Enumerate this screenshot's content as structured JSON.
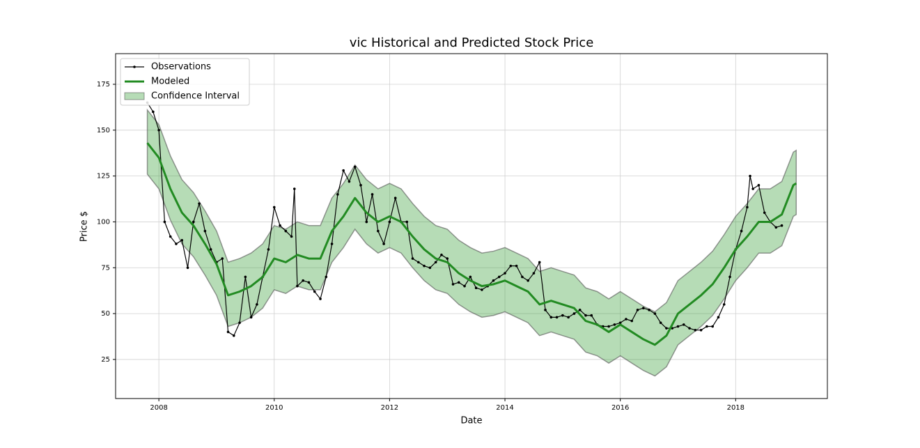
{
  "chart_data": {
    "type": "line",
    "title": "vic Historical and Predicted Stock Price",
    "x_label": "Date",
    "y_label": "Price $",
    "xlim": [
      2007.25,
      2019.59
    ],
    "xticks": [
      2008,
      2010,
      2012,
      2014,
      2016,
      2018
    ],
    "ylim": [
      3.7,
      191.7
    ],
    "yticks": [
      25,
      50,
      75,
      100,
      125,
      150,
      175
    ],
    "grid": true,
    "legend": "upper left",
    "series": [
      {
        "name": "Observations",
        "color": "#000000",
        "x": [
          2007.8,
          2007.9,
          2008.0,
          2008.1,
          2008.2,
          2008.3,
          2008.4,
          2008.5,
          2008.6,
          2008.7,
          2008.8,
          2008.9,
          2009.0,
          2009.1,
          2009.2,
          2009.3,
          2009.4,
          2009.5,
          2009.6,
          2009.7,
          2009.8,
          2009.9,
          2010.0,
          2010.1,
          2010.2,
          2010.3,
          2010.35,
          2010.4,
          2010.5,
          2010.6,
          2010.7,
          2010.8,
          2010.9,
          2011.0,
          2011.1,
          2011.2,
          2011.3,
          2011.4,
          2011.5,
          2011.6,
          2011.7,
          2011.8,
          2011.9,
          2012.0,
          2012.1,
          2012.2,
          2012.3,
          2012.4,
          2012.5,
          2012.6,
          2012.7,
          2012.8,
          2012.9,
          2013.0,
          2013.1,
          2013.2,
          2013.3,
          2013.4,
          2013.5,
          2013.6,
          2013.7,
          2013.8,
          2013.9,
          2014.0,
          2014.1,
          2014.2,
          2014.3,
          2014.4,
          2014.5,
          2014.6,
          2014.7,
          2014.8,
          2014.9,
          2015.0,
          2015.1,
          2015.2,
          2015.3,
          2015.4,
          2015.5,
          2015.6,
          2015.7,
          2015.8,
          2015.9,
          2016.0,
          2016.1,
          2016.2,
          2016.3,
          2016.4,
          2016.5,
          2016.6,
          2016.7,
          2016.8,
          2016.9,
          2017.0,
          2017.1,
          2017.2,
          2017.3,
          2017.4,
          2017.5,
          2017.6,
          2017.7,
          2017.8,
          2017.9,
          2018.0,
          2018.1,
          2018.2,
          2018.25,
          2018.3,
          2018.4,
          2018.5,
          2018.6,
          2018.7,
          2018.8
        ],
        "values": [
          165,
          160,
          150,
          100,
          92,
          88,
          90,
          75,
          100,
          110,
          95,
          85,
          78,
          80,
          40,
          38,
          45,
          70,
          48,
          55,
          70,
          85,
          108,
          98,
          95,
          92,
          118,
          65,
          68,
          67,
          62,
          58,
          70,
          88,
          115,
          128,
          122,
          130,
          120,
          100,
          115,
          95,
          88,
          100,
          113,
          100,
          100,
          80,
          78,
          76,
          75,
          78,
          82,
          80,
          66,
          67,
          65,
          70,
          64,
          63,
          65,
          68,
          70,
          72,
          76,
          76,
          70,
          68,
          72,
          78,
          52,
          48,
          48,
          49,
          48,
          50,
          52,
          49,
          49,
          44,
          43,
          43,
          44,
          45,
          47,
          46,
          52,
          53,
          52,
          50,
          45,
          42,
          42,
          43,
          44,
          42,
          41,
          41,
          43,
          43,
          48,
          55,
          70,
          85,
          95,
          108,
          125,
          118,
          120,
          105,
          100,
          97,
          98
        ]
      },
      {
        "name": "Modeled",
        "color": "#228b22",
        "x": [
          2007.8,
          2008.0,
          2008.2,
          2008.4,
          2008.6,
          2008.8,
          2009.0,
          2009.2,
          2009.4,
          2009.6,
          2009.8,
          2010.0,
          2010.2,
          2010.4,
          2010.6,
          2010.8,
          2011.0,
          2011.2,
          2011.4,
          2011.6,
          2011.8,
          2012.0,
          2012.2,
          2012.4,
          2012.6,
          2012.8,
          2013.0,
          2013.2,
          2013.4,
          2013.6,
          2013.8,
          2014.0,
          2014.2,
          2014.4,
          2014.6,
          2014.8,
          2015.0,
          2015.2,
          2015.4,
          2015.6,
          2015.8,
          2016.0,
          2016.2,
          2016.4,
          2016.6,
          2016.8,
          2017.0,
          2017.2,
          2017.4,
          2017.6,
          2017.8,
          2018.0,
          2018.2,
          2018.4,
          2018.6,
          2018.8,
          2019.0,
          2019.05
        ],
        "values": [
          143,
          135,
          118,
          105,
          98,
          88,
          77,
          60,
          62,
          65,
          70,
          80,
          78,
          82,
          80,
          80,
          95,
          103,
          113,
          105,
          100,
          103,
          100,
          92,
          85,
          80,
          78,
          72,
          68,
          65,
          66,
          68,
          65,
          62,
          55,
          57,
          55,
          53,
          46,
          44,
          40,
          44,
          40,
          36,
          33,
          38,
          50,
          55,
          60,
          66,
          75,
          85,
          92,
          100,
          100,
          104,
          120,
          121
        ]
      },
      {
        "name": "Confidence Interval",
        "color": "#2e9a2e",
        "x": [
          2007.8,
          2008.0,
          2008.2,
          2008.4,
          2008.6,
          2008.8,
          2009.0,
          2009.2,
          2009.4,
          2009.6,
          2009.8,
          2010.0,
          2010.2,
          2010.4,
          2010.6,
          2010.8,
          2011.0,
          2011.2,
          2011.4,
          2011.6,
          2011.8,
          2012.0,
          2012.2,
          2012.4,
          2012.6,
          2012.8,
          2013.0,
          2013.2,
          2013.4,
          2013.6,
          2013.8,
          2014.0,
          2014.2,
          2014.4,
          2014.6,
          2014.8,
          2015.0,
          2015.2,
          2015.4,
          2015.6,
          2015.8,
          2016.0,
          2016.2,
          2016.4,
          2016.6,
          2016.8,
          2017.0,
          2017.2,
          2017.4,
          2017.6,
          2017.8,
          2018.0,
          2018.2,
          2018.4,
          2018.6,
          2018.8,
          2019.0,
          2019.05
        ],
        "upper": [
          161,
          153,
          136,
          123,
          116,
          106,
          95,
          78,
          80,
          83,
          88,
          98,
          96,
          100,
          98,
          98,
          113,
          121,
          131,
          123,
          118,
          121,
          118,
          110,
          103,
          98,
          96,
          90,
          86,
          83,
          84,
          86,
          83,
          80,
          73,
          75,
          73,
          71,
          64,
          62,
          58,
          62,
          58,
          54,
          51,
          56,
          68,
          73,
          78,
          84,
          93,
          103,
          110,
          118,
          118,
          122,
          138,
          139
        ],
        "lower": [
          126,
          118,
          101,
          88,
          81,
          71,
          60,
          43,
          45,
          48,
          53,
          63,
          61,
          65,
          63,
          63,
          78,
          86,
          96,
          88,
          83,
          86,
          83,
          75,
          68,
          63,
          61,
          55,
          51,
          48,
          49,
          51,
          48,
          45,
          38,
          40,
          38,
          36,
          29,
          27,
          23,
          27,
          23,
          19,
          16,
          21,
          33,
          38,
          43,
          49,
          58,
          68,
          75,
          83,
          83,
          87,
          103,
          104
        ]
      }
    ]
  }
}
